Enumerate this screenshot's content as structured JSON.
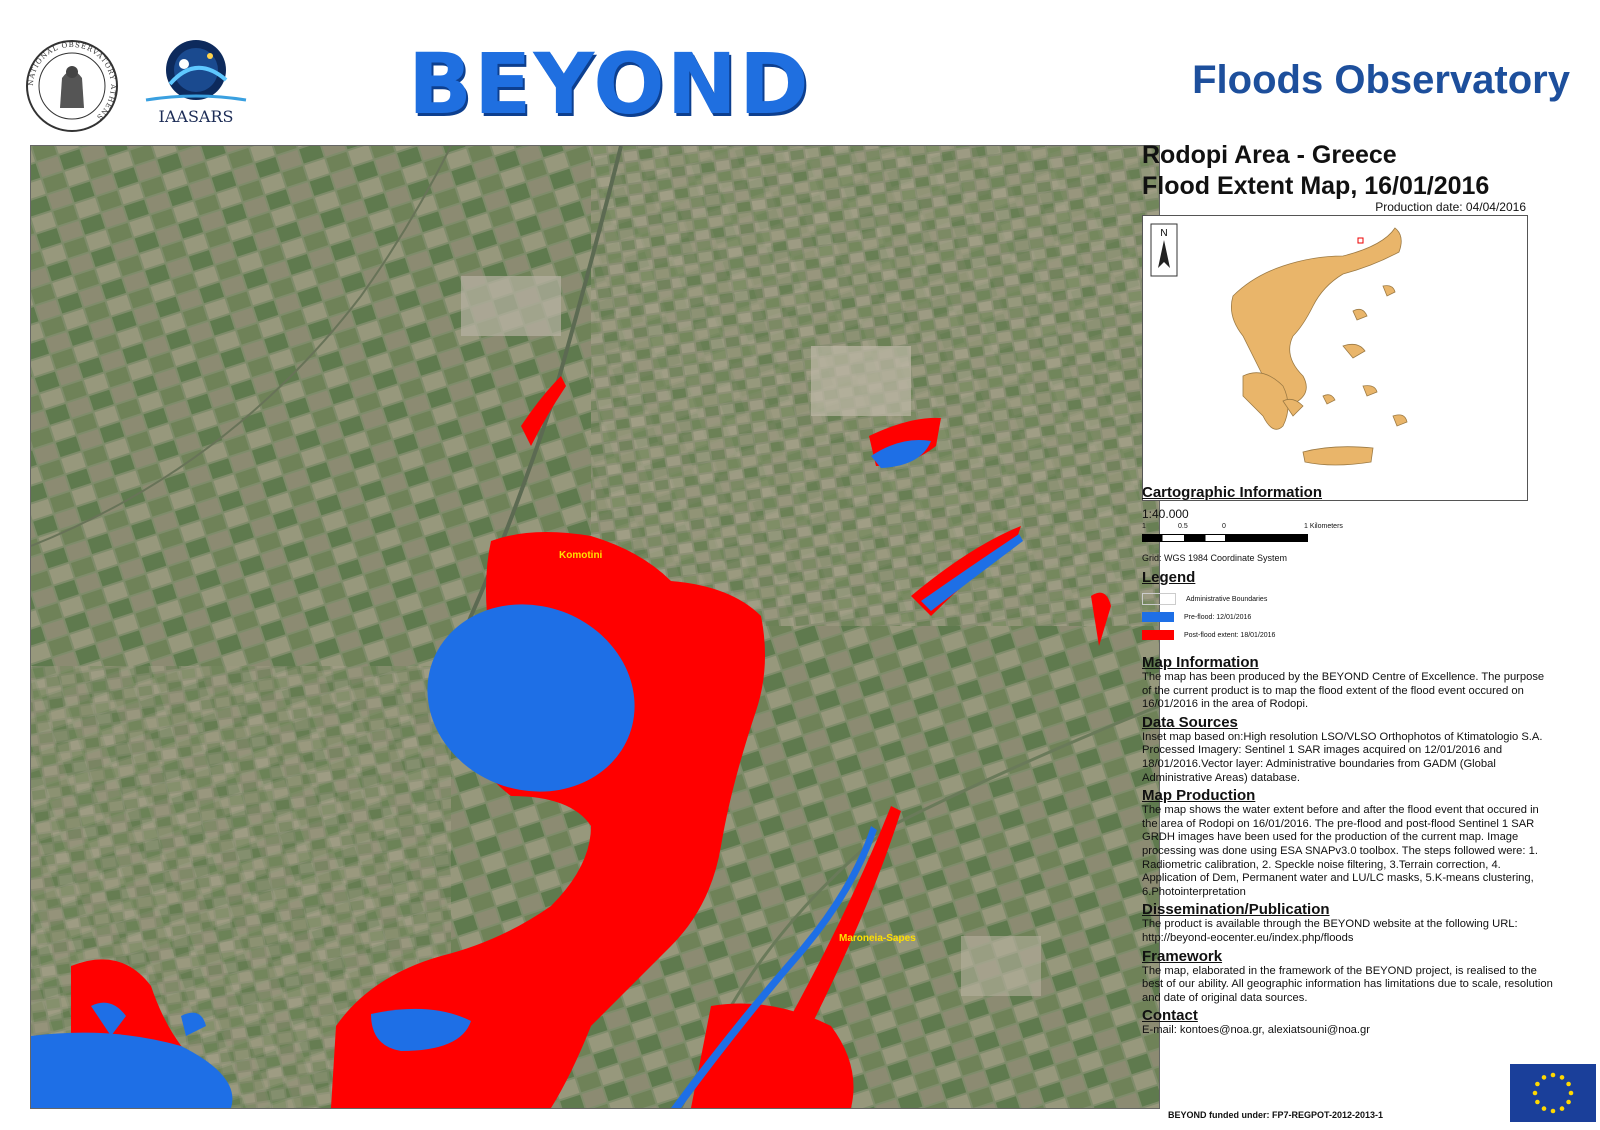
{
  "header": {
    "institute_seal_text": "NATIONAL OBSERVATORY ATHENS",
    "iaasars_label": "IAASARS",
    "beyond_logo": "BEYOND",
    "observatory_title": "Floods Observatory"
  },
  "map": {
    "place_labels": [
      "Komotini",
      "Maroneia-Sapes"
    ],
    "colors": {
      "pre_flood": "#1e6fe6",
      "post_flood": "#ff0000",
      "land": "#7f8c6b"
    }
  },
  "panel": {
    "title_line1": "Rodopi Area - Greece",
    "title_line2": "Flood Extent Map, 16/01/2016",
    "production_date": "Production date: 04/04/2016",
    "inset": {
      "north_label": "N",
      "land_color": "#e9b56a"
    },
    "cartographic": {
      "heading": "Cartographic Information",
      "scale": "1:40.000",
      "scalebar_labels": [
        "1",
        "0.5",
        "0",
        "1 Kilometers"
      ],
      "grid": "Grid:  WGS 1984 Coordinate System"
    },
    "legend": {
      "heading": "Legend",
      "items": [
        {
          "label": "Administrative Boundaries",
          "color": "#ffffff"
        },
        {
          "label": "Pre-flood: 12/01/2016",
          "color": "#1e6fe6"
        },
        {
          "label": "Post-flood extent: 18/01/2016",
          "color": "#ff0000"
        }
      ]
    },
    "map_info": {
      "heading": "Map Information",
      "text": "The map has been produced by the BEYOND Centre of Excellence. The purpose of the current product is to map the flood extent of the flood  event occured on 16/01/2016 in the area of Rodopi."
    },
    "data_sources": {
      "heading": "Data Sources",
      "text": "Inset map based on:High resolution LSO/VLSO Orthophotos of Ktimatologio S.A. Processed Imagery: Sentinel 1 SAR  images acquired on 12/01/2016 and 18/01/2016.Vector layer: Administrative boundaries from GADM (Global Administrative Areas) database."
    },
    "map_production": {
      "heading": "Map Production",
      "text": "The map shows the water extent before and after  the flood event that occured  in the area of Rodopi on 16/01/2016. The pre-flood and post-flood Sentinel 1 SAR GRDH images have been used  for the production of the current map. Image processing was done using ESA SNAPv3.0 toolbox. The steps followed were: 1. Radiometric calibration, 2. Speckle noise filtering, 3.Terrain correction, 4. Application of Dem, Permanent water and LU/LC masks, 5.K-means clustering, 6.Photointerpretation"
    },
    "dissemination": {
      "heading": "Dissemination/Publication",
      "text": "The product is available through the BEYOND website at the following URL:",
      "url": " http://beyond-eocenter.eu/index.php/floods"
    },
    "framework": {
      "heading": "Framework",
      "text": "The map, elaborated in the framework of the BEYOND project, is realised to the best of our ability. All geographic information has limitations due to scale, resolution and date of original data sources."
    },
    "contact": {
      "heading": "Contact",
      "text": "E-mail: kontoes@noa.gr, alexiatsouni@noa.gr"
    },
    "funded": "BEYOND funded under: FP7-REGPOT-2012-2013-1"
  }
}
